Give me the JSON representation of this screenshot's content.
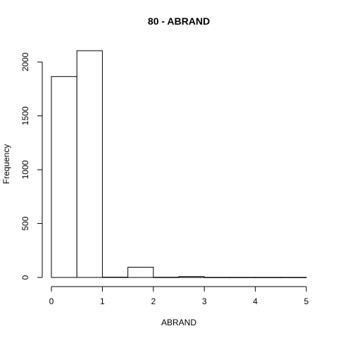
{
  "chart_data": {
    "type": "bar",
    "title": "80 - ABRAND",
    "xlabel": "ABRAND",
    "ylabel": "Frequency",
    "bins": [
      {
        "x0": 0.0,
        "x1": 0.5,
        "value": 1865
      },
      {
        "x0": 0.5,
        "x1": 1.0,
        "value": 2105
      },
      {
        "x0": 1.0,
        "x1": 1.5,
        "value": 3
      },
      {
        "x0": 1.5,
        "x1": 2.0,
        "value": 95
      },
      {
        "x0": 2.0,
        "x1": 2.5,
        "value": 2
      },
      {
        "x0": 2.5,
        "x1": 3.0,
        "value": 8
      },
      {
        "x0": 3.0,
        "x1": 3.5,
        "value": 1
      },
      {
        "x0": 3.5,
        "x1": 4.0,
        "value": 1
      },
      {
        "x0": 4.0,
        "x1": 4.5,
        "value": 1
      },
      {
        "x0": 4.5,
        "x1": 5.0,
        "value": 1
      }
    ],
    "xlim": [
      0,
      5
    ],
    "ylim": [
      0,
      2105
    ],
    "xticks": [
      "0",
      "1",
      "2",
      "3",
      "4",
      "5"
    ],
    "yticks": [
      "0",
      "500",
      "1000",
      "1500",
      "2000"
    ],
    "grid": false
  }
}
